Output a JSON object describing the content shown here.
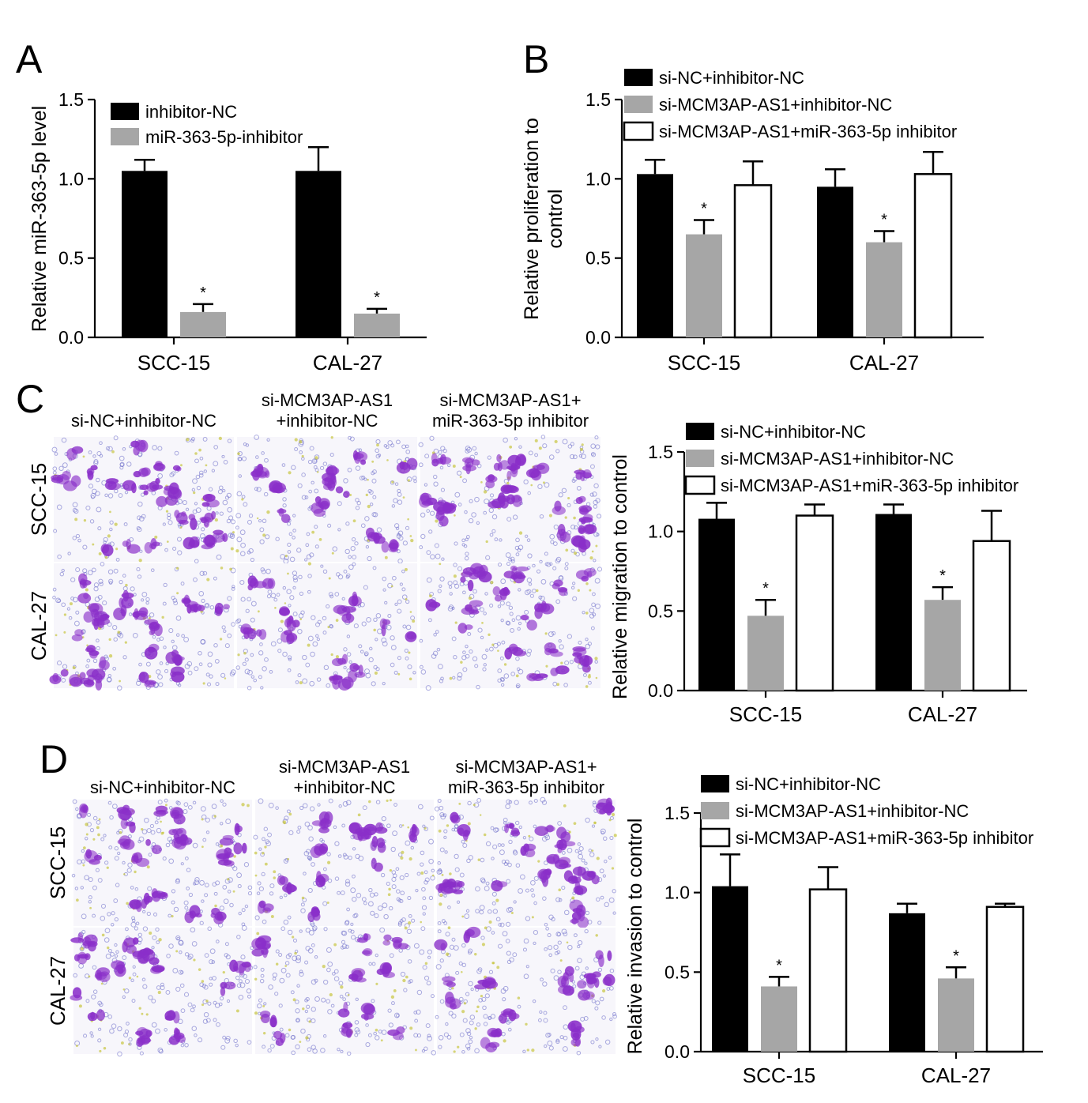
{
  "colors": {
    "black": "#000000",
    "gray": "#a6a6a6",
    "white": "#ffffff",
    "stain": "#8a2fc9",
    "nuclei": "#6a6ac8",
    "debris": "#c8c640",
    "membrane_bg": "#f7f6fb"
  },
  "panels": {
    "A": {
      "letter": "A"
    },
    "B": {
      "letter": "B"
    },
    "C": {
      "letter": "C",
      "micrograph": {
        "column_headers": [
          [
            "si-NC+inhibitor-NC"
          ],
          [
            "si-MCM3AP-AS1",
            "+inhibitor-NC"
          ],
          [
            "si-MCM3AP-AS1+",
            "miR-363-5p inhibitor"
          ]
        ],
        "row_labels": [
          "SCC-15",
          "CAL-27"
        ],
        "density": [
          [
            0.75,
            0.25,
            0.7
          ],
          [
            0.8,
            0.35,
            0.6
          ]
        ]
      }
    },
    "D": {
      "letter": "D",
      "micrograph": {
        "column_headers": [
          [
            "si-NC+inhibitor-NC"
          ],
          [
            "si-MCM3AP-AS1",
            "+inhibitor-NC"
          ],
          [
            "si-MCM3AP-AS1+",
            "miR-363-5p inhibitor"
          ]
        ],
        "row_labels": [
          "SCC-15",
          "CAL-27"
        ],
        "density": [
          [
            0.7,
            0.25,
            0.65
          ],
          [
            0.55,
            0.3,
            0.5
          ]
        ]
      }
    }
  },
  "chart_data": [
    {
      "panel": "A",
      "type": "bar",
      "categories": [
        "SCC-15",
        "CAL-27"
      ],
      "series": [
        {
          "name": "inhibitor-NC",
          "values": [
            1.05,
            1.05
          ],
          "errors": [
            0.07,
            0.15
          ],
          "color": "#000000"
        },
        {
          "name": "miR-363-5p-inhibitor",
          "values": [
            0.16,
            0.15
          ],
          "errors": [
            0.05,
            0.03
          ],
          "color": "#a6a6a6"
        }
      ],
      "significance": [
        [
          "",
          ""
        ],
        [
          "*",
          "*"
        ]
      ],
      "ylabel": "Relative miR-363-5p level",
      "ylim": [
        0,
        1.5
      ],
      "yticks": [
        "0.0",
        "0.5",
        "1.0",
        "1.5"
      ],
      "legend": "top-left",
      "grid": false
    },
    {
      "panel": "B",
      "type": "bar",
      "categories": [
        "SCC-15",
        "CAL-27"
      ],
      "series": [
        {
          "name": "si-NC+inhibitor-NC",
          "values": [
            1.03,
            0.95
          ],
          "errors": [
            0.09,
            0.11
          ],
          "color": "#000000"
        },
        {
          "name": "si-MCM3AP-AS1+inhibitor-NC",
          "values": [
            0.65,
            0.6
          ],
          "errors": [
            0.09,
            0.07
          ],
          "color": "#a6a6a6"
        },
        {
          "name": "si-MCM3AP-AS1+miR-363-5p inhibitor",
          "values": [
            0.96,
            1.03
          ],
          "errors": [
            0.15,
            0.14
          ],
          "color": "#ffffff"
        }
      ],
      "significance": [
        [
          "",
          ""
        ],
        [
          "*",
          "*"
        ],
        [
          "",
          ""
        ]
      ],
      "ylabel": [
        "Relative proliferation to",
        "control"
      ],
      "ylim": [
        0,
        1.5
      ],
      "yticks": [
        "0.0",
        "0.5",
        "1.0",
        "1.5"
      ],
      "legend": "top",
      "grid": false
    },
    {
      "panel": "C",
      "type": "bar",
      "categories": [
        "SCC-15",
        "CAL-27"
      ],
      "series": [
        {
          "name": "si-NC+inhibitor-NC",
          "values": [
            1.08,
            1.11
          ],
          "errors": [
            0.1,
            0.06
          ],
          "color": "#000000"
        },
        {
          "name": "si-MCM3AP-AS1+inhibitor-NC",
          "values": [
            0.47,
            0.57
          ],
          "errors": [
            0.1,
            0.08
          ],
          "color": "#a6a6a6"
        },
        {
          "name": "si-MCM3AP-AS1+miR-363-5p inhibitor",
          "values": [
            1.1,
            0.94
          ],
          "errors": [
            0.07,
            0.19
          ],
          "color": "#ffffff"
        }
      ],
      "significance": [
        [
          "",
          ""
        ],
        [
          "*",
          "*"
        ],
        [
          "",
          ""
        ]
      ],
      "ylabel": "Relative migration to control",
      "ylim": [
        0,
        1.5
      ],
      "yticks": [
        "0.0",
        "0.5",
        "1.0",
        "1.5"
      ],
      "legend": "top",
      "grid": false
    },
    {
      "panel": "D",
      "type": "bar",
      "categories": [
        "SCC-15",
        "CAL-27"
      ],
      "series": [
        {
          "name": "si-NC+inhibitor-NC",
          "values": [
            1.04,
            0.87
          ],
          "errors": [
            0.2,
            0.06
          ],
          "color": "#000000"
        },
        {
          "name": "si-MCM3AP-AS1+inhibitor-NC",
          "values": [
            0.41,
            0.46
          ],
          "errors": [
            0.06,
            0.07
          ],
          "color": "#a6a6a6"
        },
        {
          "name": "si-MCM3AP-AS1+miR-363-5p inhibitor",
          "values": [
            1.02,
            0.91
          ],
          "errors": [
            0.14,
            0.02
          ],
          "color": "#ffffff"
        }
      ],
      "significance": [
        [
          "",
          ""
        ],
        [
          "*",
          "*"
        ],
        [
          "",
          ""
        ]
      ],
      "ylabel": "Relative invasion to control",
      "ylim": [
        0,
        1.5
      ],
      "yticks": [
        "0.0",
        "0.5",
        "1.0",
        "1.5"
      ],
      "legend": "top",
      "grid": false
    }
  ]
}
